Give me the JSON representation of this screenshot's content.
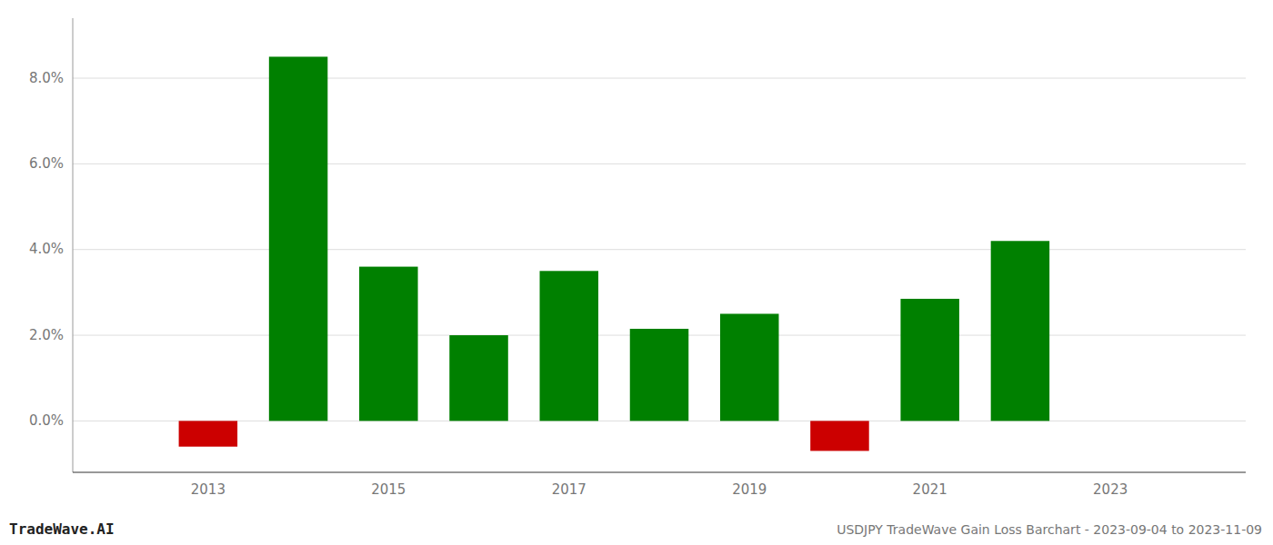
{
  "chart_data": {
    "type": "bar",
    "title": "USDJPY TradeWave Gain Loss Barchart - 2023-09-04 to 2023-11-09",
    "annotations": [
      "TradeWave.AI"
    ],
    "x": [
      2013,
      2014,
      2015,
      2016,
      2017,
      2018,
      2019,
      2020,
      2021,
      2022,
      2023
    ],
    "values": [
      -0.006,
      0.085,
      0.036,
      0.02,
      0.035,
      0.0215,
      0.025,
      -0.007,
      0.0285,
      0.042,
      null
    ],
    "colors": [
      "#cc0000",
      "#008000",
      "#008000",
      "#008000",
      "#008000",
      "#008000",
      "#008000",
      "#cc0000",
      "#008000",
      "#008000",
      null
    ],
    "xlim": [
      2011.5,
      2024.5
    ],
    "xticks": [
      2013,
      2015,
      2017,
      2019,
      2021,
      2023
    ],
    "ylim": [
      -0.012,
      0.094
    ],
    "yticks": [
      {
        "value": 0.0,
        "label": "0.0%"
      },
      {
        "value": 0.02,
        "label": "2.0%"
      },
      {
        "value": 0.04,
        "label": "4.0%"
      },
      {
        "value": 0.06,
        "label": "6.0%"
      },
      {
        "value": 0.08,
        "label": "8.0%"
      }
    ],
    "grid": true
  }
}
